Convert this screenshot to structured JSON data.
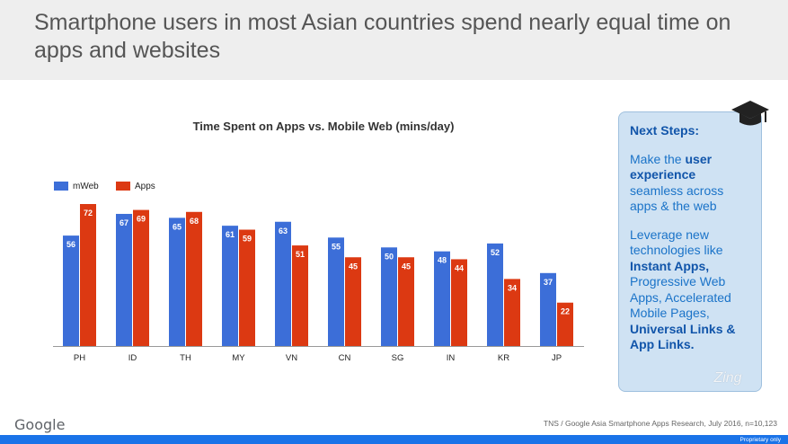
{
  "header": {
    "title": "Smartphone users in most Asian countries spend nearly equal time on apps and websites"
  },
  "chart_data": {
    "type": "bar",
    "title": "Time Spent on Apps vs. Mobile Web (mins/day)",
    "xlabel": "",
    "ylabel": "",
    "ylim": [
      0,
      80
    ],
    "grid": false,
    "legend_position": "top-left",
    "categories": [
      "PH",
      "ID",
      "TH",
      "MY",
      "VN",
      "CN",
      "SG",
      "IN",
      "KR",
      "JP"
    ],
    "series": [
      {
        "name": "mWeb",
        "color": "#3c6ed8",
        "values": [
          56,
          67,
          65,
          61,
          63,
          55,
          50,
          48,
          52,
          37
        ]
      },
      {
        "name": "Apps",
        "color": "#dc3912",
        "values": [
          72,
          69,
          68,
          59,
          51,
          45,
          45,
          44,
          34,
          22
        ]
      }
    ]
  },
  "sidebar": {
    "heading": "Next Steps:",
    "p1_a": "Make the ",
    "p1_b": "user experience",
    "p1_c": " seamless across apps & the web",
    "p2_a": "Leverage new technologies like ",
    "p2_b": "Instant Apps,",
    "p2_c": " Progressive Web Apps, Accelerated Mobile Pages, ",
    "p2_d": "Universal Links & App Links."
  },
  "watermark": "Zing",
  "footer": {
    "logo": "Google",
    "source": "TNS / Google Asia Smartphone Apps Research, July 2016, n=10,123",
    "note": "Proprietary only"
  },
  "icons": {
    "sidebar_icon": "graduation-cap-icon"
  }
}
